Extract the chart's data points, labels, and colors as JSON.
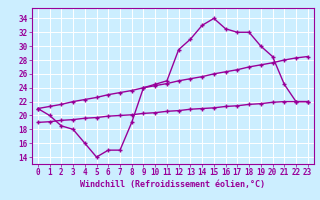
{
  "xlabel": "Windchill (Refroidissement éolien,°C)",
  "bg_color": "#cceeff",
  "line_color": "#990099",
  "grid_color": "#ffffff",
  "x_ticks": [
    0,
    1,
    2,
    3,
    4,
    5,
    6,
    7,
    8,
    9,
    10,
    11,
    12,
    13,
    14,
    15,
    16,
    17,
    18,
    19,
    20,
    21,
    22,
    23
  ],
  "y_ticks": [
    14,
    16,
    18,
    20,
    22,
    24,
    26,
    28,
    30,
    32,
    34
  ],
  "ylim": [
    13.0,
    35.5
  ],
  "xlim": [
    -0.5,
    23.5
  ],
  "line1_x": [
    0,
    1,
    2,
    3,
    4,
    5,
    6,
    7,
    8,
    9,
    10,
    11,
    12,
    13,
    14,
    15,
    16,
    17,
    18,
    19,
    20,
    21,
    22,
    23
  ],
  "line1_y": [
    21.0,
    20.0,
    18.5,
    18.0,
    16.0,
    14.0,
    15.0,
    15.0,
    19.0,
    24.0,
    24.5,
    25.0,
    29.5,
    31.0,
    33.0,
    34.0,
    32.5,
    32.0,
    32.0,
    30.0,
    28.5,
    24.5,
    22.0,
    22.0
  ],
  "line2_x": [
    0,
    1,
    2,
    3,
    4,
    5,
    6,
    7,
    8,
    9,
    10,
    11,
    12,
    13,
    14,
    15,
    16,
    17,
    18,
    19,
    20,
    21,
    22,
    23
  ],
  "line2_y": [
    21.0,
    21.3,
    21.6,
    22.0,
    22.3,
    22.6,
    23.0,
    23.3,
    23.6,
    24.0,
    24.3,
    24.6,
    25.0,
    25.3,
    25.6,
    26.0,
    26.3,
    26.6,
    27.0,
    27.3,
    27.6,
    28.0,
    28.3,
    28.5
  ],
  "line3_x": [
    0,
    1,
    2,
    3,
    4,
    5,
    6,
    7,
    8,
    9,
    10,
    11,
    12,
    13,
    14,
    15,
    16,
    17,
    18,
    19,
    20,
    21,
    22,
    23
  ],
  "line3_y": [
    19.0,
    19.1,
    19.3,
    19.4,
    19.6,
    19.7,
    19.9,
    20.0,
    20.1,
    20.3,
    20.4,
    20.6,
    20.7,
    20.9,
    21.0,
    21.1,
    21.3,
    21.4,
    21.6,
    21.7,
    21.9,
    22.0,
    22.0,
    22.0
  ],
  "tick_fontsize": 5.5,
  "xlabel_fontsize": 6.0
}
